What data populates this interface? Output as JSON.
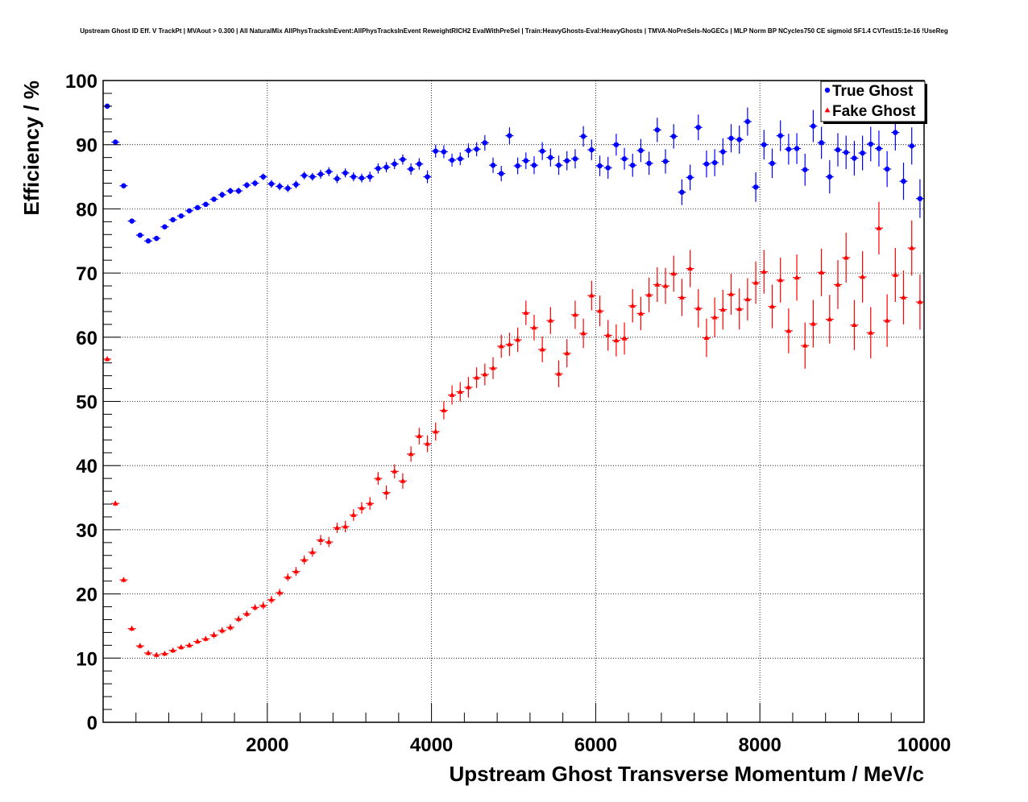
{
  "chart_data": {
    "type": "scatter",
    "title": "Upstream Ghost ID Eff. V TrackPt | MVAout > 0.300 | All NaturalMix AllPhysTracksInEvent:AllPhysTracksInEvent ReweightRICH2 EvalWithPreSel | Train:HeavyGhosts-Eval:HeavyGhosts | TMVA-NoPreSels-NoGECs | MLP Norm BP NCycles750 CE sigmoid SF1.4 CVTest15:1e-16 !UseReg",
    "xlabel": "Upstream Ghost Transverse Momentum / MeV/c",
    "ylabel": "Efficiency / %",
    "xlim": [
      0,
      10000
    ],
    "ylim": [
      0,
      100
    ],
    "x_ticks": [
      2000,
      4000,
      6000,
      8000,
      10000
    ],
    "y_ticks": [
      0,
      10,
      20,
      30,
      40,
      50,
      60,
      70,
      80,
      90,
      100
    ],
    "grid": true,
    "legend_position": "top-right",
    "x": [
      50,
      150,
      250,
      350,
      450,
      550,
      650,
      750,
      850,
      950,
      1050,
      1150,
      1250,
      1350,
      1450,
      1550,
      1650,
      1750,
      1850,
      1950,
      2050,
      2150,
      2250,
      2350,
      2450,
      2550,
      2650,
      2750,
      2850,
      2950,
      3050,
      3150,
      3250,
      3350,
      3450,
      3550,
      3650,
      3750,
      3850,
      3950,
      4050,
      4150,
      4250,
      4350,
      4450,
      4550,
      4650,
      4750,
      4850,
      4950,
      5050,
      5150,
      5250,
      5350,
      5450,
      5550,
      5650,
      5750,
      5850,
      5950,
      6050,
      6150,
      6250,
      6350,
      6450,
      6550,
      6650,
      6750,
      6850,
      6950,
      7050,
      7150,
      7250,
      7350,
      7450,
      7550,
      7650,
      7750,
      7850,
      7950,
      8050,
      8150,
      8250,
      8350,
      8450,
      8550,
      8650,
      8750,
      8850,
      8950,
      9050,
      9150,
      9250,
      9350,
      9450,
      9550,
      9650,
      9750,
      9850,
      9950
    ],
    "series": [
      {
        "name": "True Ghost",
        "color": "#0000ff",
        "marker": "circle",
        "values": [
          96.0,
          90.4,
          83.6,
          78.1,
          75.9,
          75.0,
          75.4,
          77.2,
          78.3,
          78.9,
          79.7,
          80.2,
          80.7,
          81.5,
          82.2,
          82.8,
          82.8,
          83.7,
          84.0,
          85.0,
          83.9,
          83.5,
          83.2,
          83.8,
          85.2,
          85.0,
          85.4,
          85.8,
          84.7,
          85.6,
          85.0,
          84.8,
          85.0,
          86.3,
          86.5,
          87.0,
          87.7,
          86.2,
          87.0,
          85.0,
          89.0,
          88.9,
          87.6,
          87.8,
          89.1,
          89.3,
          90.3,
          86.8,
          85.5,
          91.4,
          86.7,
          87.5,
          86.8,
          89.0,
          88.0,
          86.8,
          87.5,
          87.8,
          91.3,
          89.2,
          86.7,
          86.4,
          90.0,
          87.8,
          86.8,
          89.1,
          87.1,
          92.3,
          87.4,
          91.3,
          82.6,
          84.9,
          92.7,
          87.0,
          87.2,
          88.9,
          91.0,
          90.8,
          93.6,
          83.4,
          90.0,
          87.1,
          91.4,
          89.3,
          89.4,
          86.1,
          92.9,
          90.3,
          85.0,
          89.2,
          88.8,
          87.9,
          88.7,
          90.1,
          89.4,
          86.2,
          91.9,
          84.3,
          89.8,
          81.6
        ],
        "errors": [
          0.4,
          0.4,
          0.4,
          0.4,
          0.4,
          0.4,
          0.4,
          0.4,
          0.4,
          0.4,
          0.4,
          0.4,
          0.4,
          0.4,
          0.5,
          0.5,
          0.5,
          0.5,
          0.5,
          0.5,
          0.6,
          0.6,
          0.6,
          0.6,
          0.6,
          0.6,
          0.7,
          0.7,
          0.7,
          0.7,
          0.7,
          0.7,
          0.8,
          0.8,
          0.8,
          0.8,
          0.8,
          0.9,
          0.9,
          1.0,
          1.0,
          1.0,
          1.0,
          1.0,
          1.1,
          1.1,
          1.2,
          1.2,
          1.2,
          1.3,
          1.3,
          1.3,
          1.4,
          1.4,
          1.4,
          1.5,
          1.5,
          1.5,
          1.6,
          1.6,
          1.6,
          1.7,
          1.7,
          1.7,
          1.8,
          1.8,
          1.8,
          1.9,
          1.9,
          1.9,
          2.0,
          2.0,
          2.0,
          2.1,
          2.1,
          2.1,
          2.2,
          2.2,
          2.2,
          2.3,
          2.3,
          2.3,
          2.4,
          2.4,
          2.4,
          2.5,
          2.5,
          2.5,
          2.6,
          2.6,
          2.6,
          2.7,
          2.7,
          2.7,
          2.8,
          2.8,
          2.8,
          2.9,
          2.9,
          3.0
        ]
      },
      {
        "name": "Fake Ghost",
        "color": "#ff0000",
        "marker": "triangle",
        "values": [
          56.6,
          34.1,
          22.2,
          14.6,
          11.9,
          10.8,
          10.5,
          10.7,
          11.2,
          11.7,
          12.0,
          12.6,
          13.0,
          13.6,
          14.3,
          14.8,
          16.1,
          16.9,
          17.9,
          18.2,
          19.1,
          20.2,
          22.6,
          23.5,
          25.3,
          26.5,
          28.4,
          28.1,
          30.3,
          30.5,
          32.3,
          33.4,
          34.1,
          38.0,
          35.8,
          39.1,
          37.6,
          41.8,
          44.6,
          43.4,
          45.3,
          48.6,
          51.0,
          51.5,
          52.2,
          53.7,
          54.2,
          55.2,
          58.6,
          58.9,
          59.6,
          63.8,
          61.5,
          58.1,
          62.6,
          54.3,
          57.5,
          63.5,
          60.6,
          66.5,
          64.1,
          60.3,
          59.5,
          59.8,
          64.9,
          63.7,
          66.6,
          68.2,
          68.0,
          69.9,
          66.2,
          70.7,
          64.5,
          59.9,
          63.1,
          64.3,
          66.7,
          64.4,
          65.9,
          68.5,
          70.2,
          64.8,
          68.9,
          61.0,
          69.3,
          58.7,
          62.1,
          70.1,
          62.8,
          68.2,
          72.4,
          61.9,
          69.4,
          60.7,
          77.0,
          62.6,
          69.7,
          66.2,
          73.9,
          65.5
        ],
        "errors": [
          0.4,
          0.4,
          0.4,
          0.4,
          0.4,
          0.4,
          0.4,
          0.4,
          0.4,
          0.4,
          0.4,
          0.4,
          0.4,
          0.5,
          0.5,
          0.5,
          0.5,
          0.5,
          0.5,
          0.6,
          0.6,
          0.6,
          0.6,
          0.7,
          0.7,
          0.7,
          0.8,
          0.8,
          0.8,
          0.9,
          0.9,
          0.9,
          1.0,
          1.0,
          1.1,
          1.1,
          1.2,
          1.2,
          1.3,
          1.3,
          1.4,
          1.4,
          1.5,
          1.5,
          1.6,
          1.6,
          1.7,
          1.7,
          1.8,
          1.8,
          1.9,
          1.9,
          2.0,
          2.0,
          2.1,
          2.1,
          2.2,
          2.2,
          2.3,
          2.3,
          2.4,
          2.4,
          2.5,
          2.5,
          2.6,
          2.6,
          2.7,
          2.7,
          2.8,
          2.8,
          2.9,
          2.9,
          3.0,
          3.0,
          3.1,
          3.1,
          3.2,
          3.2,
          3.3,
          3.3,
          3.4,
          3.4,
          3.5,
          3.5,
          3.6,
          3.6,
          3.7,
          3.7,
          3.8,
          3.8,
          3.9,
          3.9,
          4.0,
          4.0,
          4.1,
          4.1,
          4.2,
          4.2,
          4.3,
          4.3
        ]
      }
    ]
  }
}
